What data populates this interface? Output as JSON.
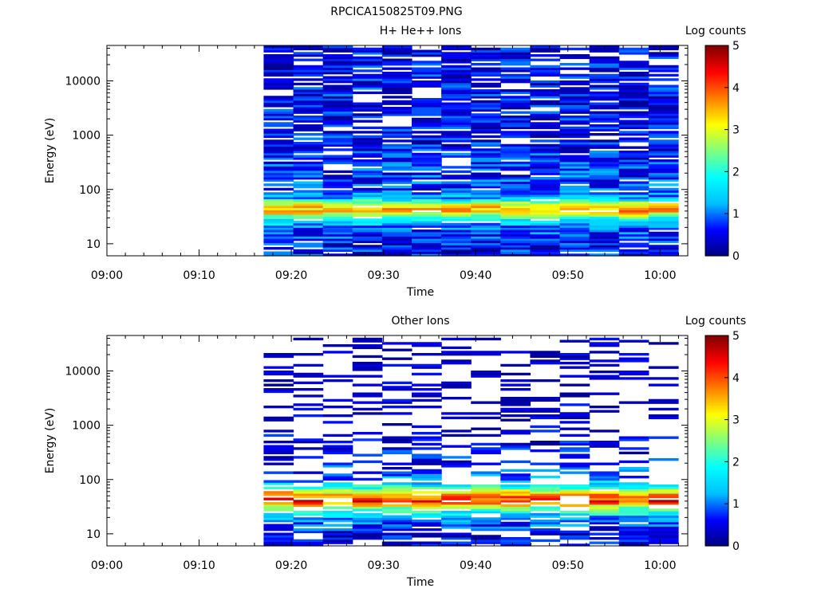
{
  "figure_title": "RPCICA150825T09.PNG",
  "chart_data": [
    {
      "type": "heatmap",
      "title": "H+ He++ Ions",
      "xlabel": "Time",
      "ylabel": "Energy (eV)",
      "colorbar_label": "Log counts",
      "colorbar_ticks": [
        "0",
        "1",
        "2",
        "3",
        "4",
        "5"
      ],
      "colorbar_range": [
        0,
        5
      ],
      "y_scale": "log",
      "ylim": [
        6,
        45000
      ],
      "y_ticks": [
        "10",
        "100",
        "1000",
        "10000"
      ],
      "x_ticks": [
        "09:00",
        "09:10",
        "09:20",
        "09:30",
        "09:40",
        "09:50",
        "10:00"
      ],
      "time_range": [
        "09:00",
        "10:03"
      ],
      "data_start": "09:17",
      "num_time_bins": 14,
      "energy_levels": 96,
      "colormap": [
        "#000080",
        "#0000ff",
        "#00bfff",
        "#00ffff",
        "#7fff7f",
        "#ffff00",
        "#ff7f00",
        "#ff0000",
        "#800000"
      ],
      "seed": 7,
      "profile": [
        [
          10,
          0.6
        ],
        [
          20,
          0.9
        ],
        [
          30,
          2.0
        ],
        [
          40,
          3.6
        ],
        [
          55,
          3.0
        ],
        [
          70,
          1.3
        ],
        [
          100,
          0.8
        ],
        [
          300,
          0.7
        ],
        [
          1000,
          0.55
        ],
        [
          10000,
          0.55
        ],
        [
          45000,
          0.5
        ]
      ],
      "gap_prob": 0.18,
      "grid": false,
      "legend": "none"
    },
    {
      "type": "heatmap",
      "title": "Other Ions",
      "xlabel": "Time",
      "ylabel": "Energy (eV)",
      "colorbar_label": "Log counts",
      "colorbar_ticks": [
        "0",
        "1",
        "2",
        "3",
        "4",
        "5"
      ],
      "colorbar_range": [
        0,
        5
      ],
      "y_scale": "log",
      "ylim": [
        6,
        45000
      ],
      "y_ticks": [
        "10",
        "100",
        "1000",
        "10000"
      ],
      "x_ticks": [
        "09:00",
        "09:10",
        "09:20",
        "09:30",
        "09:40",
        "09:50",
        "10:00"
      ],
      "time_range": [
        "09:00",
        "10:03"
      ],
      "data_start": "09:17",
      "num_time_bins": 14,
      "energy_levels": 96,
      "colormap": [
        "#000080",
        "#0000ff",
        "#00bfff",
        "#00ffff",
        "#7fff7f",
        "#ffff00",
        "#ff7f00",
        "#ff0000",
        "#800000"
      ],
      "seed": 23,
      "profile": [
        [
          10,
          0.4
        ],
        [
          20,
          1.2
        ],
        [
          30,
          2.4
        ],
        [
          40,
          4.3
        ],
        [
          55,
          3.6
        ],
        [
          70,
          2.2
        ],
        [
          100,
          1.1
        ],
        [
          200,
          0.6
        ],
        [
          1000,
          0.2
        ],
        [
          45000,
          0.15
        ]
      ],
      "gap_prob": 0.55,
      "grid": false,
      "legend": "none"
    }
  ]
}
